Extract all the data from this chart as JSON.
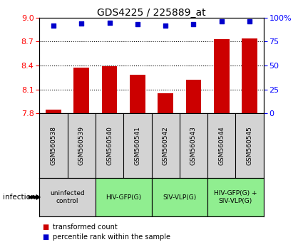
{
  "title": "GDS4225 / 225889_at",
  "samples": [
    "GSM560538",
    "GSM560539",
    "GSM560540",
    "GSM560541",
    "GSM560542",
    "GSM560543",
    "GSM560544",
    "GSM560545"
  ],
  "bar_values": [
    7.85,
    8.37,
    8.39,
    8.28,
    8.05,
    8.22,
    8.73,
    8.74
  ],
  "percentile_values": [
    92,
    94,
    95,
    93,
    92,
    93,
    96,
    96
  ],
  "ylim_left": [
    7.8,
    9.0
  ],
  "ylim_right": [
    0,
    100
  ],
  "yticks_left": [
    7.8,
    8.1,
    8.4,
    8.7,
    9.0
  ],
  "yticks_right": [
    0,
    25,
    50,
    75,
    100
  ],
  "ytick_right_labels": [
    "0",
    "25",
    "50",
    "75",
    "100%"
  ],
  "bar_color": "#cc0000",
  "scatter_color": "#0000cc",
  "scatter_size": 18,
  "groups": [
    {
      "label": "uninfected\ncontrol",
      "start": 0,
      "end": 2,
      "color": "#d3d3d3"
    },
    {
      "label": "HIV-GFP(G)",
      "start": 2,
      "end": 4,
      "color": "#90ee90"
    },
    {
      "label": "SIV-VLP(G)",
      "start": 4,
      "end": 6,
      "color": "#90ee90"
    },
    {
      "label": "HIV-GFP(G) +\nSIV-VLP(G)",
      "start": 6,
      "end": 8,
      "color": "#90ee90"
    }
  ],
  "sample_bg_color": "#d3d3d3",
  "legend_bar_label": "transformed count",
  "legend_scatter_label": "percentile rank within the sample",
  "infection_label": "infection",
  "dotted_line_color": "#000000",
  "bar_width": 0.55
}
